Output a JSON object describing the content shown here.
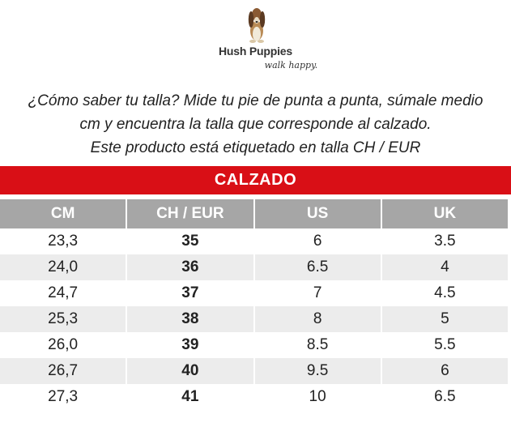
{
  "brand": {
    "name": "Hush Puppies",
    "tagline": "walk happy."
  },
  "intro": {
    "line1": "¿Cómo saber tu talla? Mide tu pie de punta a punta, súmale medio",
    "line2": "cm y encuentra la talla que corresponde al calzado.",
    "line3": "Este producto está etiquetado en talla CH / EUR"
  },
  "table": {
    "title": "CALZADO",
    "headers": [
      "CM",
      "CH / EUR",
      "US",
      "UK"
    ],
    "rows": [
      [
        "23,3",
        "35",
        "6",
        "3.5"
      ],
      [
        "24,0",
        "36",
        "6.5",
        "4"
      ],
      [
        "24,7",
        "37",
        "7",
        "4.5"
      ],
      [
        "25,3",
        "38",
        "8",
        "5"
      ],
      [
        "26,0",
        "39",
        "8.5",
        "5.5"
      ],
      [
        "26,7",
        "40",
        "9.5",
        "6"
      ],
      [
        "27,3",
        "41",
        "10",
        "6.5"
      ]
    ]
  },
  "colors": {
    "banner": "#d90f16",
    "header": "#a6a6a6",
    "stripe": "#ececec"
  }
}
